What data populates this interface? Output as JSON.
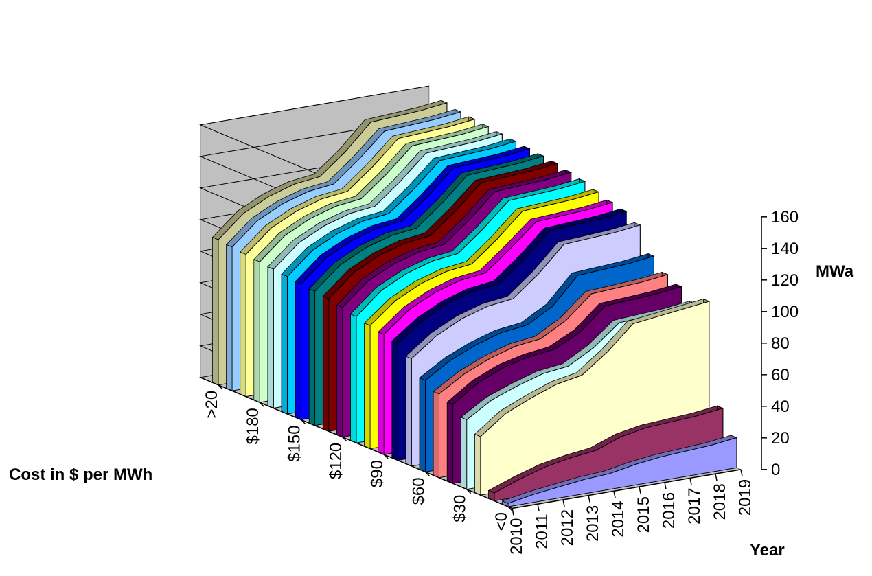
{
  "chart_data": {
    "type": "area",
    "variant": "3d-stacked-depth",
    "xlabel": "Year",
    "ylabel": "MWa",
    "zlabel": "Cost in $ per MWh",
    "x": [
      "2010",
      "2011",
      "2012",
      "2013",
      "2014",
      "2015",
      "2016",
      "2017",
      "2018",
      "2019"
    ],
    "ylim": [
      0,
      160
    ],
    "yticks": [
      "0",
      "20",
      "40",
      "60",
      "80",
      "100",
      "120",
      "140",
      "160"
    ],
    "zticks": [
      "<0",
      "$30",
      "$60",
      "$90",
      "$120",
      "$150",
      "$180",
      ">20"
    ],
    "grid": true,
    "legend": "none",
    "series": [
      {
        "color": "#9999ff",
        "values": [
          2,
          5,
          7,
          9,
          10,
          13,
          15,
          16,
          17,
          19
        ]
      },
      {
        "color": "#993366",
        "values": [
          5,
          11,
          16,
          19,
          21,
          27,
          30,
          31,
          32,
          34
        ]
      },
      {
        "color": "#ffffcc",
        "values": [
          37,
          49,
          56,
          62,
          65,
          77,
          92,
          94,
          96,
          98
        ]
      },
      {
        "color": "#ccffff",
        "values": [
          44,
          54,
          60,
          65,
          67,
          76,
          89,
          90,
          91,
          93
        ]
      },
      {
        "color": "#660066",
        "values": [
          50,
          61,
          68,
          72,
          74,
          82,
          96,
          97,
          98,
          100
        ]
      },
      {
        "color": "#ff8080",
        "values": [
          53,
          63,
          70,
          75,
          77,
          86,
          100,
          101,
          102,
          104
        ]
      },
      {
        "color": "#0066cc",
        "values": [
          58,
          68,
          75,
          80,
          82,
          91,
          108,
          109,
          110,
          112
        ]
      },
      {
        "color": "#ccccff",
        "values": [
          68,
          80,
          88,
          93,
          95,
          108,
          124,
          125,
          126,
          128
        ]
      },
      {
        "color": "#000080",
        "values": [
          74,
          86,
          94,
          99,
          101,
          114,
          129,
          130,
          131,
          133
        ]
      },
      {
        "color": "#ff00ff",
        "values": [
          76,
          89,
          97,
          102,
          104,
          117,
          131,
          132,
          133,
          135
        ]
      },
      {
        "color": "#ffff00",
        "values": [
          78,
          91,
          99,
          104,
          106,
          119,
          134,
          135,
          136,
          138
        ]
      },
      {
        "color": "#00ffff",
        "values": [
          80,
          94,
          102,
          107,
          109,
          122,
          137,
          138,
          139,
          141
        ]
      },
      {
        "color": "#800080",
        "values": [
          82,
          96,
          104,
          109,
          111,
          124,
          139,
          140,
          141,
          143
        ]
      },
      {
        "color": "#800000",
        "values": [
          84,
          98,
          106,
          111,
          113,
          126,
          141,
          142,
          143,
          145
        ]
      },
      {
        "color": "#008080",
        "values": [
          85,
          99,
          107,
          112,
          114,
          127,
          142,
          143,
          144,
          146
        ]
      },
      {
        "color": "#0000ff",
        "values": [
          86,
          100,
          108,
          113,
          115,
          128,
          143,
          144,
          145,
          147
        ]
      },
      {
        "color": "#00ccff",
        "values": [
          87,
          101,
          109,
          114,
          116,
          129,
          144,
          145,
          146,
          148
        ]
      },
      {
        "color": "#ccffff",
        "values": [
          88,
          102,
          110,
          115,
          117,
          130,
          145,
          146,
          147,
          149
        ]
      },
      {
        "color": "#ccffcc",
        "values": [
          89,
          103,
          111,
          116,
          118,
          131,
          146,
          147,
          148,
          150
        ]
      },
      {
        "color": "#ffff99",
        "values": [
          90,
          104,
          112,
          117,
          119,
          132,
          147,
          148,
          149,
          151
        ]
      },
      {
        "color": "#99ccff",
        "values": [
          91,
          105,
          113,
          118,
          120,
          133,
          148,
          149,
          150,
          152
        ]
      },
      {
        "color": "#cccc99",
        "values": [
          92,
          106,
          114,
          119,
          121,
          134,
          150,
          151,
          152,
          154
        ]
      }
    ]
  }
}
